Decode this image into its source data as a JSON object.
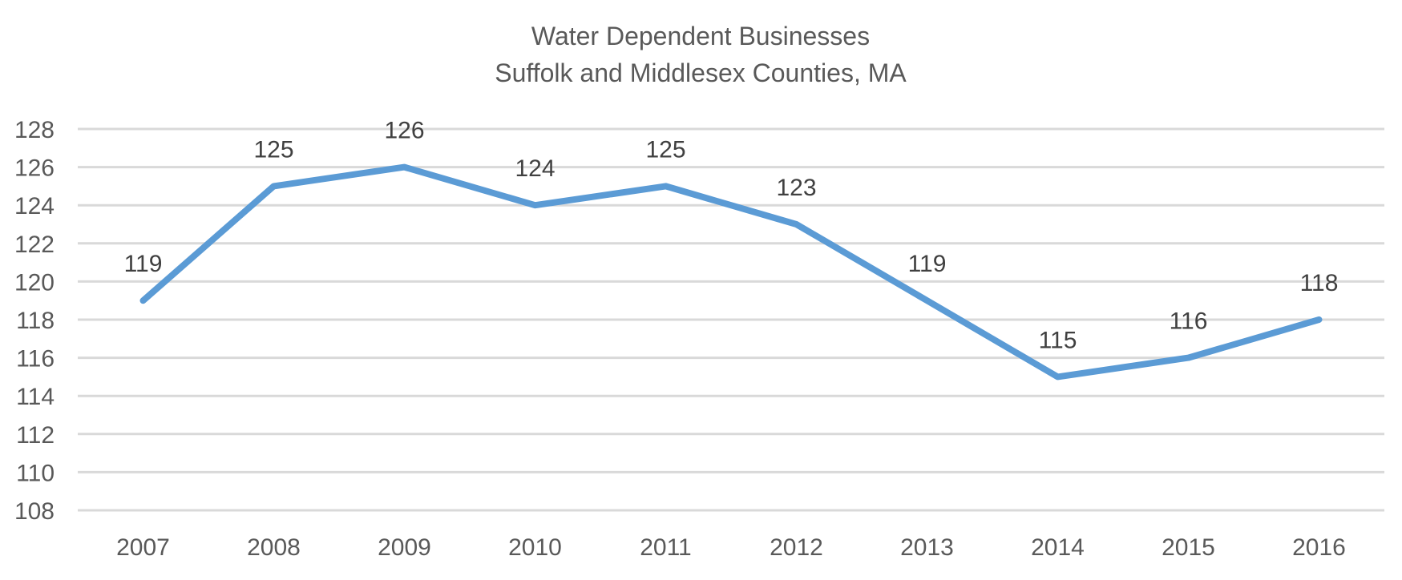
{
  "chart_data": {
    "type": "line",
    "title": "Water Dependent Businesses",
    "subtitle": "Suffolk and Middlesex Counties, MA",
    "xlabel": "",
    "ylabel": "",
    "categories": [
      "2007",
      "2008",
      "2009",
      "2010",
      "2011",
      "2012",
      "2013",
      "2014",
      "2015",
      "2016"
    ],
    "series": [
      {
        "values": [
          119,
          125,
          126,
          124,
          125,
          123,
          119,
          115,
          116,
          118
        ],
        "color": "#5b9bd5"
      }
    ],
    "ylim": [
      108,
      128
    ],
    "yticks": [
      "108",
      "110",
      "112",
      "114",
      "116",
      "118",
      "120",
      "122",
      "124",
      "126",
      "128"
    ],
    "grid": true,
    "legend": "none",
    "data_labels": true
  }
}
